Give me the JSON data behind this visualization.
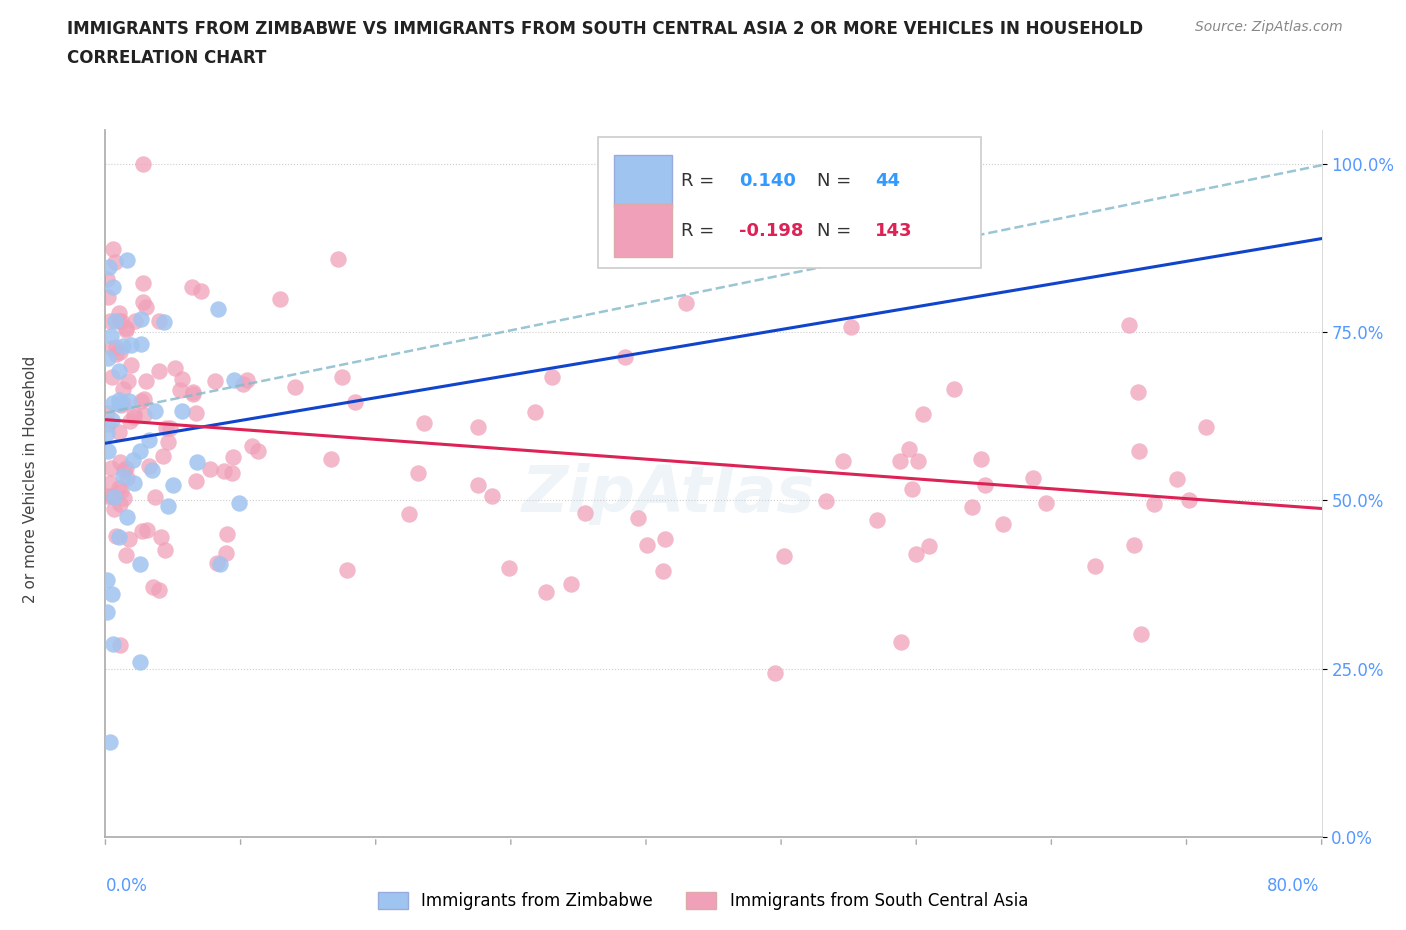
{
  "title_line1": "IMMIGRANTS FROM ZIMBABWE VS IMMIGRANTS FROM SOUTH CENTRAL ASIA 2 OR MORE VEHICLES IN HOUSEHOLD",
  "title_line2": "CORRELATION CHART",
  "source": "Source: ZipAtlas.com",
  "ylabel": "2 or more Vehicles in Household",
  "ytick_labels": [
    "0.0%",
    "25.0%",
    "50.0%",
    "75.0%",
    "100.0%"
  ],
  "ytick_values": [
    0,
    25,
    50,
    75,
    100
  ],
  "xlim": [
    0,
    80
  ],
  "ylim": [
    0,
    105
  ],
  "r_zimbabwe": 0.14,
  "n_zimbabwe": 44,
  "r_sca": -0.198,
  "n_sca": 143,
  "color_zimbabwe": "#a0c4f0",
  "color_sca": "#f0a0b8",
  "trendline_zimbabwe": "#1144cc",
  "trendline_sca": "#dd2255",
  "trendline_dashed": "#88bbcc",
  "watermark": "ZipAtlas",
  "legend_label_zimbabwe": "Immigrants from Zimbabwe",
  "legend_label_sca": "Immigrants from South Central Asia",
  "zim_intercept": 58.5,
  "zim_slope": 0.38,
  "sca_intercept": 62.0,
  "sca_slope": -0.165,
  "dash_intercept": 63.0,
  "dash_slope": 0.46,
  "seed": 42
}
